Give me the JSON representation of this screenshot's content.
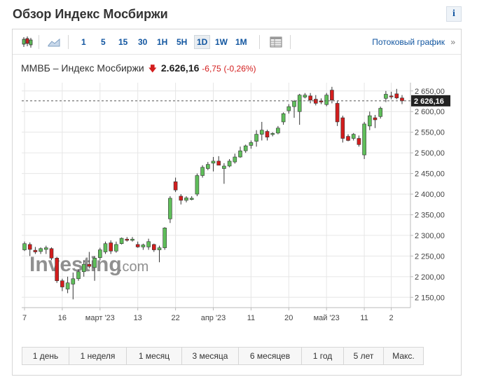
{
  "page": {
    "title": "Обзор Индекс Мосбиржи",
    "info_label": "i"
  },
  "toolbar": {
    "intervals": [
      "1",
      "5",
      "15",
      "30",
      "1H",
      "5H",
      "1D",
      "1W",
      "1M"
    ],
    "active_interval": "1D",
    "stream_label": "Потоковый график",
    "stream_arrow": "»",
    "icons": [
      "candlestick-icon",
      "area-chart-icon",
      "table-icon"
    ]
  },
  "quote": {
    "name": "ММВБ – Индекс Мосбиржи",
    "direction": "down",
    "price": "2.626,16",
    "change": "-6,75",
    "change_pct": "(-0,26%)"
  },
  "watermark": {
    "brand": "Investing",
    "suffix": ".com"
  },
  "chart_data": {
    "type": "candlestick",
    "last_price": 2626.16,
    "last_price_label": "2 626,16",
    "y_ticks": [
      2150,
      2200,
      2250,
      2300,
      2350,
      2400,
      2450,
      2500,
      2550,
      2600,
      2650
    ],
    "y_tick_labels": [
      "2 150,00",
      "2 200,00",
      "2 250,00",
      "2 300,00",
      "2 350,00",
      "2 400,00",
      "2 450,00",
      "2 500,00",
      "2 550,00",
      "2 600,00",
      "2 650,00"
    ],
    "ylim": [
      2125,
      2670
    ],
    "x_labels": [
      {
        "label": "7",
        "index": 0
      },
      {
        "label": "16",
        "index": 7
      },
      {
        "label": "март '23",
        "index": 14
      },
      {
        "label": "13",
        "index": 21
      },
      {
        "label": "22",
        "index": 28
      },
      {
        "label": "апр '23",
        "index": 35
      },
      {
        "label": "11",
        "index": 42
      },
      {
        "label": "20",
        "index": 49
      },
      {
        "label": "май '23",
        "index": 56
      },
      {
        "label": "11",
        "index": 63
      },
      {
        "label": "2",
        "index": 68
      }
    ],
    "candles": [
      {
        "o": 2265,
        "h": 2285,
        "l": 2262,
        "c": 2280
      },
      {
        "o": 2278,
        "h": 2283,
        "l": 2250,
        "c": 2266
      },
      {
        "o": 2264,
        "h": 2272,
        "l": 2255,
        "c": 2260
      },
      {
        "o": 2261,
        "h": 2271,
        "l": 2255,
        "c": 2268
      },
      {
        "o": 2266,
        "h": 2275,
        "l": 2255,
        "c": 2270
      },
      {
        "o": 2268,
        "h": 2271,
        "l": 2240,
        "c": 2245
      },
      {
        "o": 2245,
        "h": 2248,
        "l": 2185,
        "c": 2190
      },
      {
        "o": 2190,
        "h": 2195,
        "l": 2165,
        "c": 2175
      },
      {
        "o": 2170,
        "h": 2200,
        "l": 2160,
        "c": 2185
      },
      {
        "o": 2182,
        "h": 2210,
        "l": 2145,
        "c": 2195
      },
      {
        "o": 2195,
        "h": 2218,
        "l": 2190,
        "c": 2212
      },
      {
        "o": 2212,
        "h": 2240,
        "l": 2200,
        "c": 2230
      },
      {
        "o": 2230,
        "h": 2260,
        "l": 2220,
        "c": 2225
      },
      {
        "o": 2222,
        "h": 2250,
        "l": 2190,
        "c": 2245
      },
      {
        "o": 2246,
        "h": 2270,
        "l": 2240,
        "c": 2265
      },
      {
        "o": 2260,
        "h": 2285,
        "l": 2255,
        "c": 2280
      },
      {
        "o": 2282,
        "h": 2288,
        "l": 2255,
        "c": 2262
      },
      {
        "o": 2262,
        "h": 2285,
        "l": 2258,
        "c": 2278
      },
      {
        "o": 2280,
        "h": 2295,
        "l": 2278,
        "c": 2293
      },
      {
        "o": 2291,
        "h": 2296,
        "l": 2285,
        "c": 2288
      },
      {
        "o": 2288,
        "h": 2296,
        "l": 2285,
        "c": 2291
      },
      {
        "o": 2278,
        "h": 2285,
        "l": 2270,
        "c": 2272
      },
      {
        "o": 2272,
        "h": 2280,
        "l": 2265,
        "c": 2277
      },
      {
        "o": 2272,
        "h": 2292,
        "l": 2265,
        "c": 2285
      },
      {
        "o": 2278,
        "h": 2280,
        "l": 2260,
        "c": 2265
      },
      {
        "o": 2265,
        "h": 2275,
        "l": 2235,
        "c": 2270
      },
      {
        "o": 2270,
        "h": 2320,
        "l": 2265,
        "c": 2318
      },
      {
        "o": 2340,
        "h": 2395,
        "l": 2330,
        "c": 2390
      },
      {
        "o": 2430,
        "h": 2440,
        "l": 2405,
        "c": 2410
      },
      {
        "o": 2395,
        "h": 2400,
        "l": 2375,
        "c": 2385
      },
      {
        "o": 2385,
        "h": 2395,
        "l": 2380,
        "c": 2391
      },
      {
        "o": 2387,
        "h": 2395,
        "l": 2385,
        "c": 2390
      },
      {
        "o": 2400,
        "h": 2450,
        "l": 2395,
        "c": 2445
      },
      {
        "o": 2445,
        "h": 2470,
        "l": 2440,
        "c": 2465
      },
      {
        "o": 2462,
        "h": 2478,
        "l": 2458,
        "c": 2472
      },
      {
        "o": 2475,
        "h": 2490,
        "l": 2455,
        "c": 2480
      },
      {
        "o": 2480,
        "h": 2492,
        "l": 2475,
        "c": 2470
      },
      {
        "o": 2462,
        "h": 2475,
        "l": 2425,
        "c": 2468
      },
      {
        "o": 2468,
        "h": 2485,
        "l": 2465,
        "c": 2480
      },
      {
        "o": 2478,
        "h": 2498,
        "l": 2474,
        "c": 2490
      },
      {
        "o": 2490,
        "h": 2515,
        "l": 2488,
        "c": 2505
      },
      {
        "o": 2505,
        "h": 2520,
        "l": 2500,
        "c": 2517
      },
      {
        "o": 2518,
        "h": 2530,
        "l": 2510,
        "c": 2525
      },
      {
        "o": 2528,
        "h": 2555,
        "l": 2515,
        "c": 2545
      },
      {
        "o": 2545,
        "h": 2575,
        "l": 2530,
        "c": 2555
      },
      {
        "o": 2552,
        "h": 2556,
        "l": 2530,
        "c": 2538
      },
      {
        "o": 2545,
        "h": 2550,
        "l": 2540,
        "c": 2547
      },
      {
        "o": 2548,
        "h": 2565,
        "l": 2545,
        "c": 2560
      },
      {
        "o": 2575,
        "h": 2598,
        "l": 2568,
        "c": 2595
      },
      {
        "o": 2602,
        "h": 2618,
        "l": 2595,
        "c": 2612
      },
      {
        "o": 2612,
        "h": 2628,
        "l": 2585,
        "c": 2625
      },
      {
        "o": 2600,
        "h": 2643,
        "l": 2568,
        "c": 2640
      },
      {
        "o": 2635,
        "h": 2645,
        "l": 2632,
        "c": 2640
      },
      {
        "o": 2638,
        "h": 2645,
        "l": 2620,
        "c": 2628
      },
      {
        "o": 2630,
        "h": 2640,
        "l": 2615,
        "c": 2620
      },
      {
        "o": 2626,
        "h": 2632,
        "l": 2618,
        "c": 2623
      },
      {
        "o": 2617,
        "h": 2645,
        "l": 2613,
        "c": 2640
      },
      {
        "o": 2652,
        "h": 2660,
        "l": 2620,
        "c": 2628
      },
      {
        "o": 2620,
        "h": 2625,
        "l": 2565,
        "c": 2575
      },
      {
        "o": 2585,
        "h": 2590,
        "l": 2525,
        "c": 2535
      },
      {
        "o": 2540,
        "h": 2545,
        "l": 2528,
        "c": 2530
      },
      {
        "o": 2535,
        "h": 2548,
        "l": 2530,
        "c": 2545
      },
      {
        "o": 2535,
        "h": 2542,
        "l": 2515,
        "c": 2520
      },
      {
        "o": 2495,
        "h": 2575,
        "l": 2485,
        "c": 2570
      },
      {
        "o": 2565,
        "h": 2600,
        "l": 2555,
        "c": 2590
      },
      {
        "o": 2585,
        "h": 2592,
        "l": 2560,
        "c": 2580
      },
      {
        "o": 2588,
        "h": 2612,
        "l": 2583,
        "c": 2608
      },
      {
        "o": 2632,
        "h": 2650,
        "l": 2623,
        "c": 2642
      },
      {
        "o": 2638,
        "h": 2648,
        "l": 2630,
        "c": 2637
      },
      {
        "o": 2643,
        "h": 2655,
        "l": 2630,
        "c": 2633
      },
      {
        "o": 2633,
        "h": 2640,
        "l": 2618,
        "c": 2626
      }
    ]
  },
  "ranges": [
    "1 день",
    "1 неделя",
    "1 месяц",
    "3 месяца",
    "6 месяцев",
    "1 год",
    "5 лет",
    "Макс."
  ],
  "colors": {
    "up": "#5fbe5a",
    "down": "#d31d1d",
    "link": "#1256a0",
    "grid": "#e6e6e6"
  }
}
